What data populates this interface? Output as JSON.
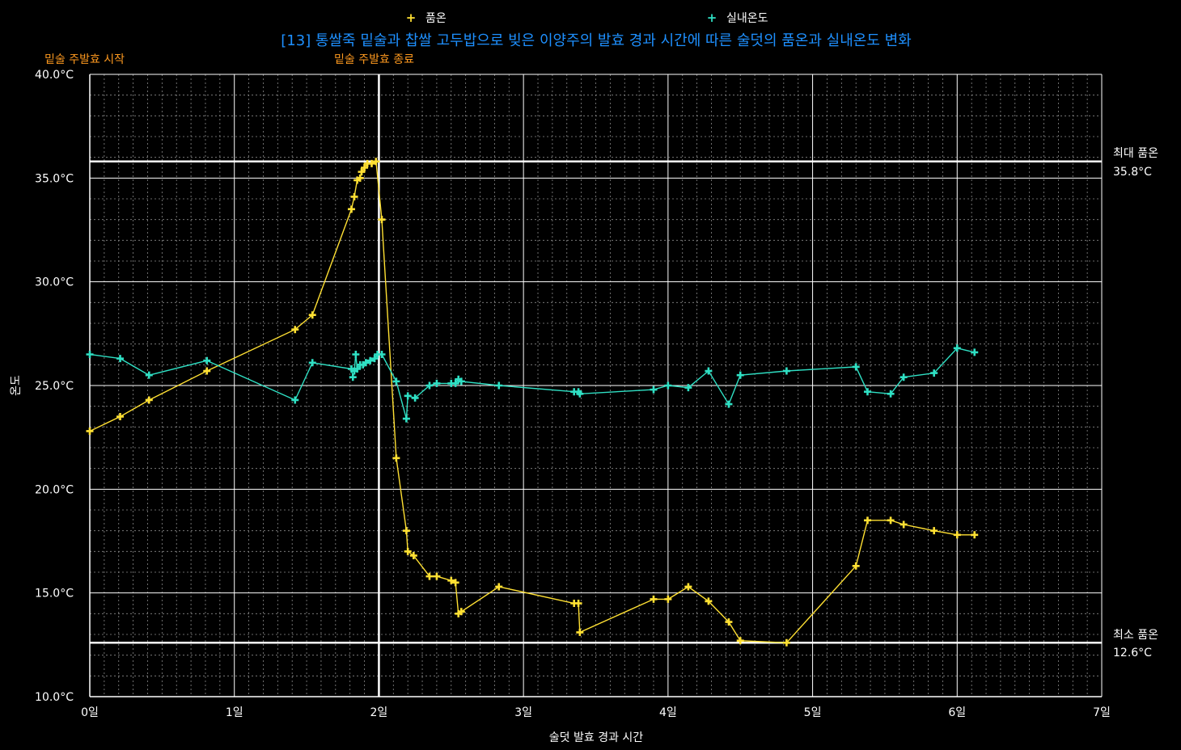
{
  "chart_data": {
    "type": "line",
    "title": "[13] 통쌀죽 밑술과 찹쌀 고두밥으로 빚은 이양주의 발효 경과 시간에 따른 술덧의 품온과 실내온도 변화",
    "xlabel": "술덧 발효 경과 시간",
    "ylabel": "온도",
    "xlim": [
      0,
      7
    ],
    "ylim": [
      10,
      40
    ],
    "x_ticks": [
      "0일",
      "1일",
      "2일",
      "3일",
      "4일",
      "5일",
      "6일",
      "7일"
    ],
    "y_ticks": [
      "10.0°C",
      "15.0°C",
      "20.0°C",
      "25.0°C",
      "30.0°C",
      "35.0°C",
      "40.0°C"
    ],
    "grid": true,
    "legend_position": "top",
    "annotations": {
      "start": "밑술 주발효 시작",
      "end": "밑술 주발효 종료",
      "end_x": 2.0,
      "max_label": "최대 품온",
      "max_value_label": "35.8°C",
      "max_value": 35.8,
      "min_label": "최소 품온",
      "min_value_label": "12.6°C",
      "min_value": 12.6
    },
    "series": [
      {
        "name": "품온",
        "color": "#ffe033",
        "points": [
          [
            0.0,
            22.8
          ],
          [
            0.21,
            23.5
          ],
          [
            0.41,
            24.3
          ],
          [
            0.81,
            25.7
          ],
          [
            1.42,
            27.7
          ],
          [
            1.54,
            28.4
          ],
          [
            1.81,
            33.5
          ],
          [
            1.83,
            34.1
          ],
          [
            1.85,
            34.9
          ],
          [
            1.87,
            35.0
          ],
          [
            1.88,
            35.3
          ],
          [
            1.9,
            35.5
          ],
          [
            1.92,
            35.7
          ],
          [
            1.95,
            35.7
          ],
          [
            1.98,
            35.8
          ],
          [
            2.02,
            33.0
          ],
          [
            2.12,
            21.5
          ],
          [
            2.19,
            18.0
          ],
          [
            2.2,
            17.0
          ],
          [
            2.24,
            16.8
          ],
          [
            2.35,
            15.8
          ],
          [
            2.4,
            15.8
          ],
          [
            2.5,
            15.6
          ],
          [
            2.53,
            15.5
          ],
          [
            2.55,
            14.0
          ],
          [
            2.57,
            14.1
          ],
          [
            2.83,
            15.3
          ],
          [
            3.35,
            14.5
          ],
          [
            3.38,
            14.5
          ],
          [
            3.39,
            13.1
          ],
          [
            3.9,
            14.7
          ],
          [
            4.0,
            14.7
          ],
          [
            4.14,
            15.3
          ],
          [
            4.28,
            14.6
          ],
          [
            4.42,
            13.6
          ],
          [
            4.5,
            12.7
          ],
          [
            4.82,
            12.6
          ],
          [
            5.3,
            16.3
          ],
          [
            5.38,
            18.5
          ],
          [
            5.54,
            18.5
          ],
          [
            5.63,
            18.3
          ],
          [
            5.84,
            18.0
          ],
          [
            6.0,
            17.8
          ],
          [
            6.12,
            17.8
          ]
        ]
      },
      {
        "name": "실내온도",
        "color": "#2fe0c4",
        "points": [
          [
            0.0,
            26.5
          ],
          [
            0.21,
            26.3
          ],
          [
            0.41,
            25.5
          ],
          [
            0.81,
            26.2
          ],
          [
            1.42,
            24.3
          ],
          [
            1.54,
            26.1
          ],
          [
            1.81,
            25.8
          ],
          [
            1.82,
            25.4
          ],
          [
            1.83,
            25.7
          ],
          [
            1.84,
            26.5
          ],
          [
            1.85,
            25.8
          ],
          [
            1.87,
            26.0
          ],
          [
            1.89,
            26.0
          ],
          [
            1.91,
            26.1
          ],
          [
            1.94,
            26.2
          ],
          [
            1.97,
            26.3
          ],
          [
            1.99,
            26.5
          ],
          [
            2.02,
            26.5
          ],
          [
            2.12,
            25.2
          ],
          [
            2.19,
            23.4
          ],
          [
            2.2,
            24.5
          ],
          [
            2.25,
            24.4
          ],
          [
            2.35,
            25.0
          ],
          [
            2.4,
            25.1
          ],
          [
            2.5,
            25.1
          ],
          [
            2.53,
            25.1
          ],
          [
            2.55,
            25.3
          ],
          [
            2.57,
            25.2
          ],
          [
            2.83,
            25.0
          ],
          [
            3.35,
            24.7
          ],
          [
            3.38,
            24.7
          ],
          [
            3.39,
            24.6
          ],
          [
            3.9,
            24.8
          ],
          [
            4.0,
            25.0
          ],
          [
            4.14,
            24.9
          ],
          [
            4.28,
            25.7
          ],
          [
            4.42,
            24.1
          ],
          [
            4.5,
            25.5
          ],
          [
            4.82,
            25.7
          ],
          [
            5.3,
            25.9
          ],
          [
            5.38,
            24.7
          ],
          [
            5.54,
            24.6
          ],
          [
            5.63,
            25.4
          ],
          [
            5.84,
            25.6
          ],
          [
            6.0,
            26.8
          ],
          [
            6.12,
            26.6
          ]
        ]
      }
    ]
  }
}
